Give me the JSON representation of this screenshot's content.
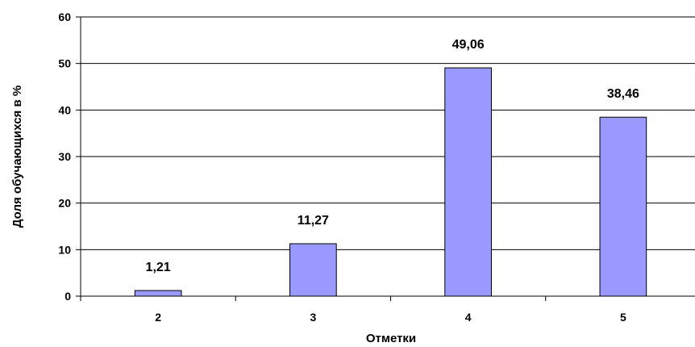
{
  "chart_data": {
    "type": "bar",
    "title": "",
    "xlabel": "Отметки",
    "ylabel": "Доля обучающихся в %",
    "categories": [
      "2",
      "3",
      "4",
      "5"
    ],
    "values": [
      1.21,
      11.27,
      49.06,
      38.46
    ],
    "value_labels": [
      "1,21",
      "11,27",
      "49,06",
      "38,46"
    ],
    "yticks": [
      0,
      10,
      20,
      30,
      40,
      50,
      60
    ],
    "ylim": [
      0,
      60
    ],
    "grid": true,
    "legend": "none",
    "bar_color": "#9999ff",
    "bar_edge_color": "#000000"
  }
}
